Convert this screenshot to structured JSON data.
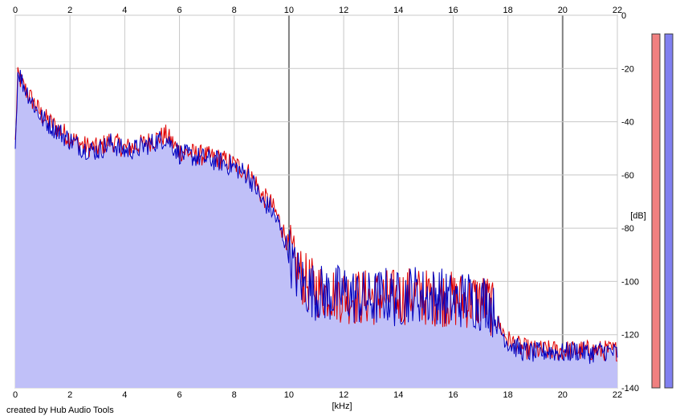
{
  "credit": "created by Hub Audio Tools",
  "chart_data": {
    "type": "area",
    "title": "",
    "xlabel": "[kHz]",
    "ylabel": "[dB]",
    "xlim": [
      0,
      22
    ],
    "ylim": [
      -140,
      0
    ],
    "x_ticks": [
      "0",
      "2",
      "4",
      "6",
      "8",
      "10",
      "12",
      "14",
      "16",
      "18",
      "20",
      "22"
    ],
    "y_ticks": [
      "0",
      "-20",
      "-40",
      "-60",
      "-80",
      "-100",
      "-120",
      "-140"
    ],
    "grid": true,
    "colors": {
      "fill": "#c0c0f8",
      "left_line": "#e00000",
      "right_line": "#0000c0",
      "grid": "#c8c8c8",
      "grid_major": "#808080",
      "left_meter": "#f08080",
      "right_meter": "#8080f0"
    },
    "series": [
      {
        "channel": "left",
        "x": [
          0,
          0.1,
          0.25,
          0.5,
          0.75,
          1.0,
          1.5,
          2.0,
          2.5,
          3.0,
          3.5,
          4.0,
          4.5,
          5.0,
          5.5,
          6.0,
          6.5,
          7.0,
          7.5,
          8.0,
          8.5,
          8.8,
          9.0,
          9.3,
          9.6,
          9.9,
          10.2,
          10.6,
          11.0,
          11.5,
          12.0,
          12.5,
          13.0,
          13.5,
          14.0,
          14.5,
          15.0,
          15.5,
          16.0,
          16.5,
          17.0,
          17.3,
          17.6,
          18.0,
          18.5,
          19.0,
          19.5,
          20.0,
          20.5,
          21.0,
          21.5,
          22.0
        ],
        "values": [
          -48,
          -22,
          -26,
          -30,
          -34,
          -38,
          -42,
          -46,
          -49,
          -50,
          -47,
          -50,
          -49,
          -47,
          -45,
          -51,
          -52,
          -53,
          -54,
          -56,
          -59,
          -63,
          -68,
          -70,
          -76,
          -84,
          -94,
          -100,
          -103,
          -104,
          -105,
          -106,
          -106,
          -106,
          -106,
          -105,
          -106,
          -106,
          -107,
          -107,
          -107,
          -108,
          -115,
          -122,
          -125,
          -126,
          -126,
          -126,
          -126,
          -126,
          -126,
          -126
        ]
      },
      {
        "channel": "right",
        "x": [
          0,
          0.1,
          0.25,
          0.5,
          0.75,
          1.0,
          1.5,
          2.0,
          2.5,
          3.0,
          3.5,
          4.0,
          4.5,
          5.0,
          5.5,
          6.0,
          6.5,
          7.0,
          7.5,
          8.0,
          8.5,
          8.8,
          9.0,
          9.3,
          9.6,
          9.9,
          10.2,
          10.6,
          11.0,
          11.5,
          12.0,
          12.5,
          13.0,
          13.5,
          14.0,
          14.5,
          15.0,
          15.5,
          16.0,
          16.5,
          17.0,
          17.3,
          17.6,
          18.0,
          18.5,
          19.0,
          19.5,
          20.0,
          20.5,
          21.0,
          21.5,
          22.0
        ],
        "values": [
          -50,
          -20,
          -25,
          -30,
          -35,
          -39,
          -43,
          -47,
          -50,
          -51,
          -48,
          -51,
          -50,
          -48,
          -46,
          -52,
          -53,
          -54,
          -55,
          -57,
          -60,
          -65,
          -70,
          -72,
          -78,
          -86,
          -96,
          -102,
          -104,
          -105,
          -104,
          -106,
          -107,
          -105,
          -107,
          -104,
          -106,
          -105,
          -108,
          -106,
          -108,
          -107,
          -116,
          -123,
          -126,
          -127,
          -126,
          -127,
          -126,
          -127,
          -126,
          -127
        ]
      }
    ],
    "meters": {
      "left": -7,
      "right": -7
    }
  }
}
